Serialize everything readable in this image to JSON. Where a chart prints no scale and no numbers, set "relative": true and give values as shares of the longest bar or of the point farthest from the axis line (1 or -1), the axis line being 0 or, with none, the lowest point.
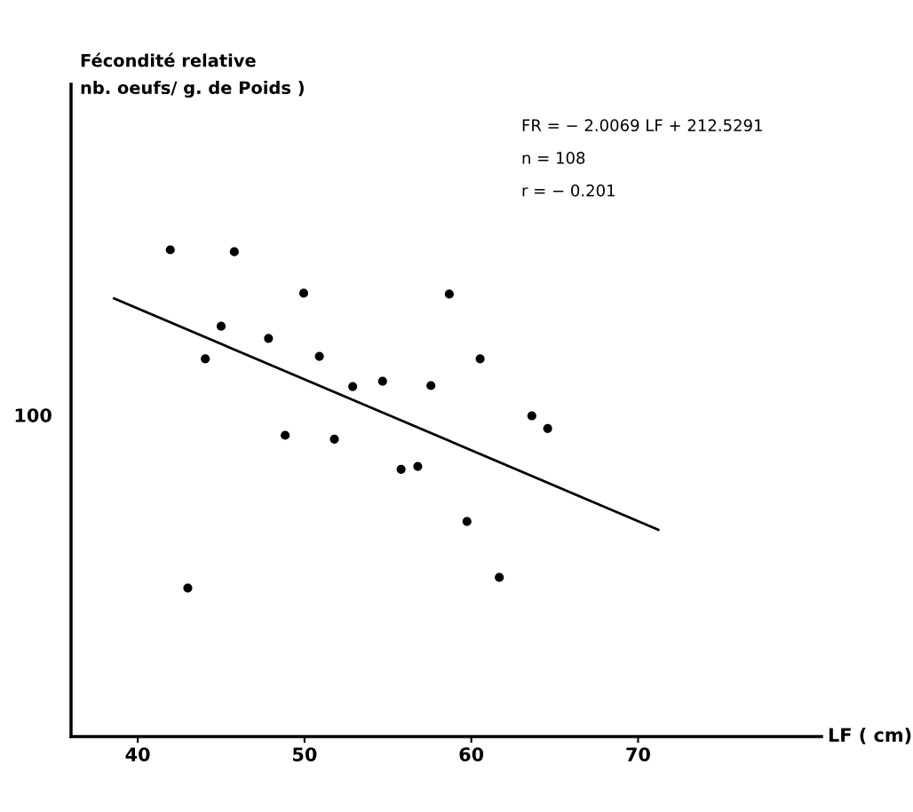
{
  "chart_data": {
    "type": "scatter",
    "relative": true,
    "title": "Fécondité relative\nnb. oeufs/ g. de Poids )",
    "xlabel": "LF ( cm)",
    "xlim": [
      36,
      81
    ],
    "xticks": [
      40,
      50,
      60,
      70
    ],
    "marker": "circle",
    "grid": false,
    "annotations": [
      "FR = − 2.0069 LF + 212.5291",
      "n = 108",
      "r = − 0.201",
      "100"
    ],
    "series": [
      {
        "color": "#000000",
        "x": [
          41.95,
          45.79,
          49.95,
          58.68,
          45.0,
          47.84,
          44.05,
          50.89,
          60.53,
          54.68,
          52.89,
          57.58,
          63.63,
          48.84,
          51.79,
          64.58,
          56.79,
          55.79,
          59.74,
          43.0,
          61.68
        ],
        "values": [
          1.0,
          0.996,
          0.911,
          0.909,
          0.843,
          0.818,
          0.776,
          0.781,
          0.776,
          0.73,
          0.719,
          0.721,
          0.659,
          0.619,
          0.611,
          0.633,
          0.555,
          0.549,
          0.442,
          0.305,
          0.327
        ]
      },
      {
        "type": "line",
        "marker": "none",
        "color": "#000000",
        "x": [
          38.58,
          71.21
        ],
        "values": [
          0.9,
          0.425
        ]
      }
    ]
  }
}
